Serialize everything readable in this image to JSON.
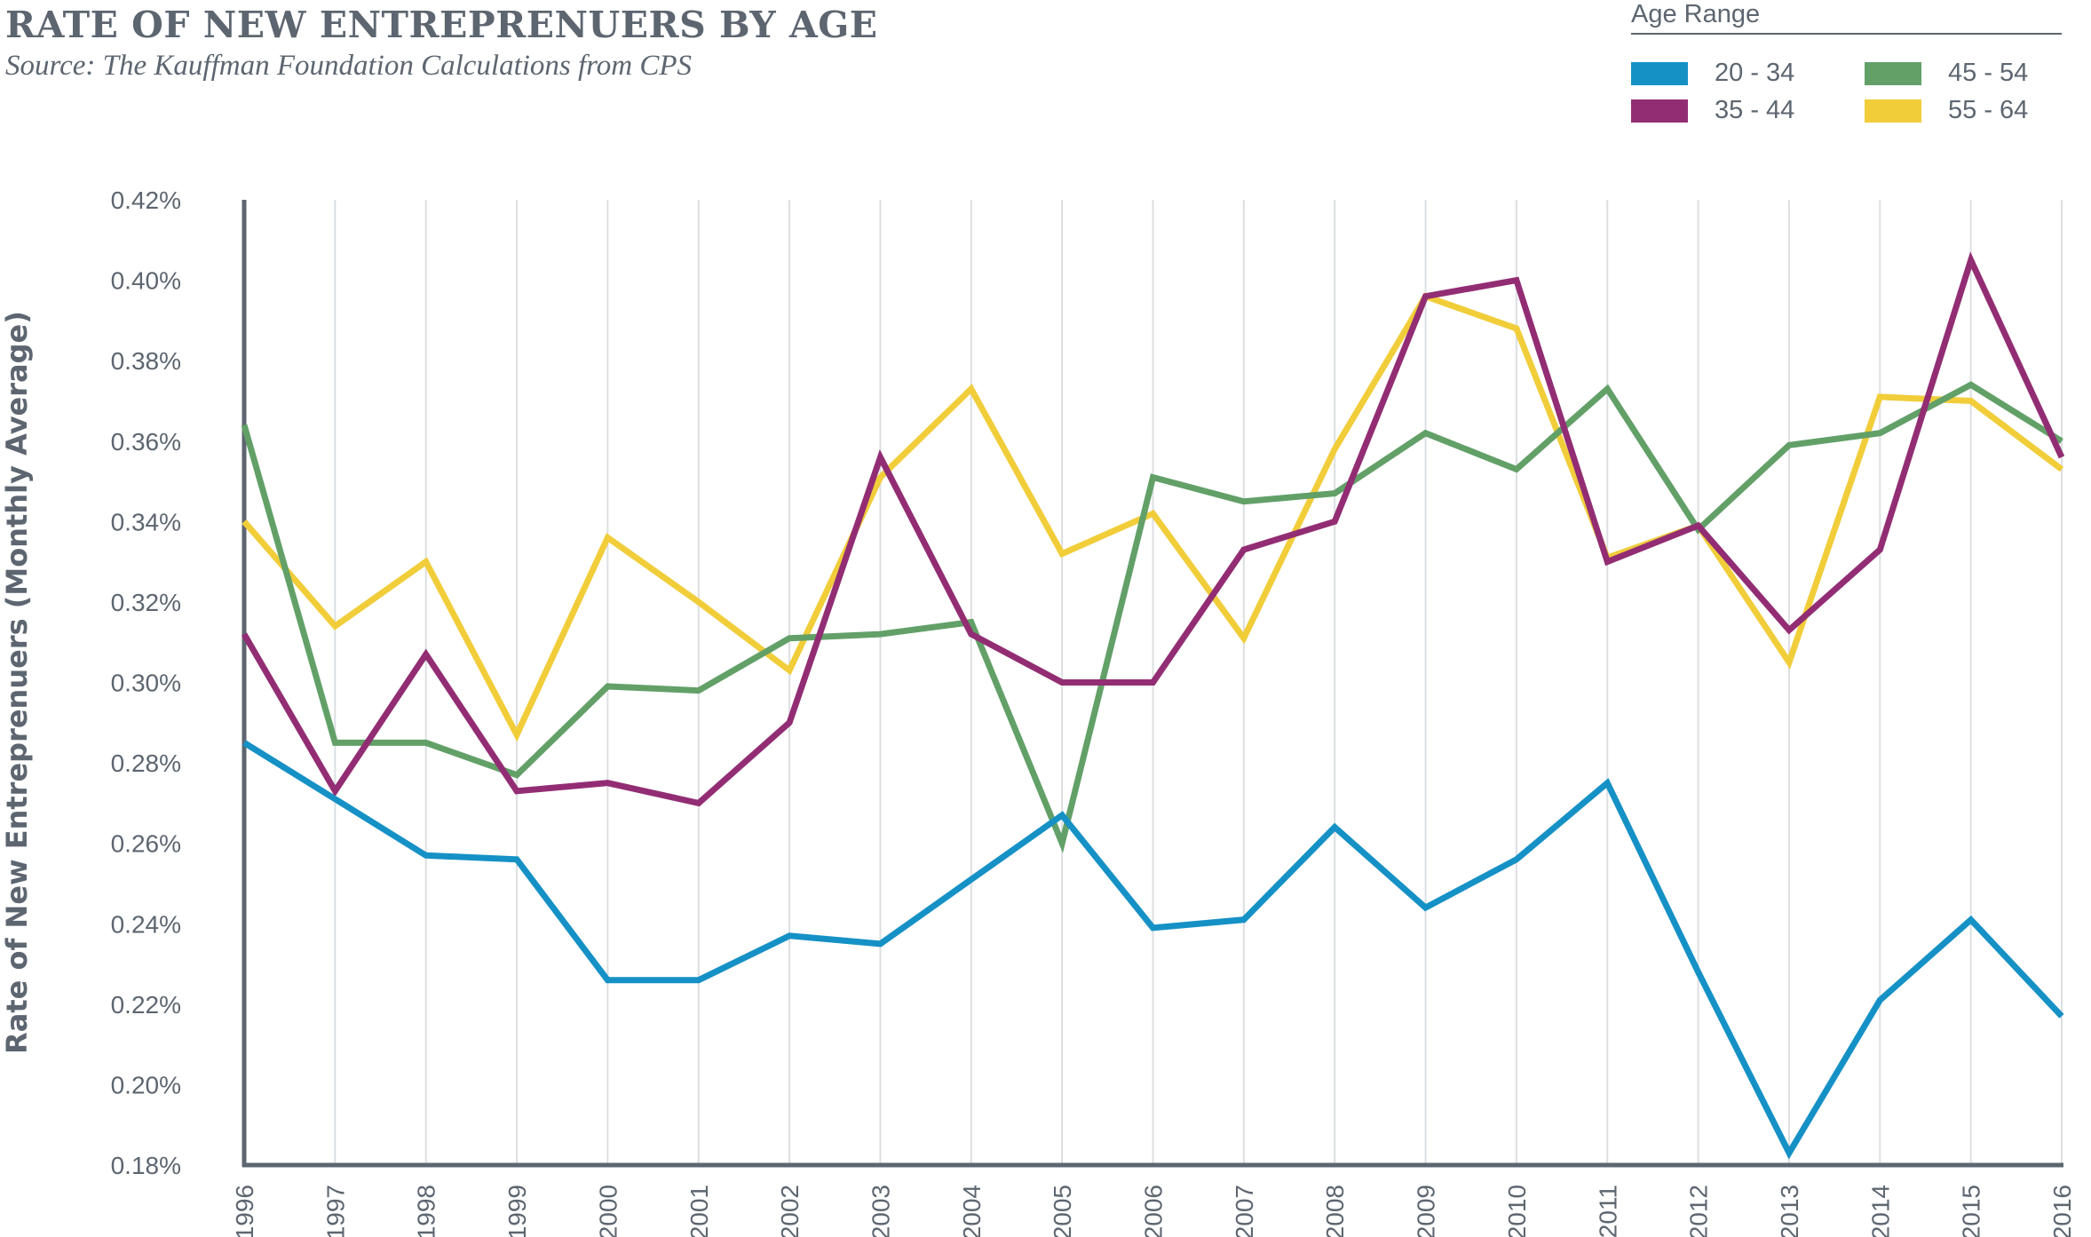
{
  "header": {
    "title": "RATE OF NEW ENTREPRENUERS BY AGE",
    "subtitle": "Source: The Kauffman Foundation Calculations from CPS"
  },
  "chart_data": {
    "type": "line",
    "title": "RATE OF NEW ENTREPRENUERS BY AGE",
    "subtitle": "Source: The Kauffman Foundation Calculations from CPS",
    "xlabel": "",
    "ylabel": "Rate of New Entreprenuers (Monthly Average)",
    "legend_title": "Age Range",
    "legend_position": "top-right",
    "grid": "vertical",
    "ylim": [
      0.18,
      0.42
    ],
    "yticks": [
      "0.18%",
      "0.20%",
      "0.22%",
      "0.24%",
      "0.26%",
      "0.28%",
      "0.30%",
      "0.32%",
      "0.34%",
      "0.36%",
      "0.38%",
      "0.40%",
      "0.42%"
    ],
    "x": [
      "1996",
      "1997",
      "1998",
      "1999",
      "2000",
      "2001",
      "2002",
      "2003",
      "2004",
      "2005",
      "2006",
      "2007",
      "2008",
      "2009",
      "2010",
      "2011",
      "2012",
      "2013",
      "2014",
      "2015",
      "2016"
    ],
    "series": [
      {
        "name": "20 - 34",
        "color": "#1591c6",
        "values": [
          0.285,
          0.271,
          0.257,
          0.256,
          0.226,
          0.226,
          0.237,
          0.235,
          0.251,
          0.267,
          0.239,
          0.241,
          0.264,
          0.244,
          0.256,
          0.275,
          0.228,
          0.183,
          0.221,
          0.241,
          0.217
        ]
      },
      {
        "name": "35 - 44",
        "color": "#922d74",
        "values": [
          0.312,
          0.273,
          0.307,
          0.273,
          0.275,
          0.27,
          0.29,
          0.356,
          0.312,
          0.3,
          0.3,
          0.333,
          0.34,
          0.396,
          0.4,
          0.33,
          0.339,
          0.313,
          0.333,
          0.405,
          0.356
        ]
      },
      {
        "name": "45 - 54",
        "color": "#62a068",
        "values": [
          0.364,
          0.285,
          0.285,
          0.277,
          0.299,
          0.298,
          0.311,
          0.312,
          0.315,
          0.26,
          0.351,
          0.345,
          0.347,
          0.362,
          0.353,
          0.373,
          0.338,
          0.359,
          0.362,
          0.374,
          0.36
        ]
      },
      {
        "name": "55 - 64",
        "color": "#f1cd3a",
        "values": [
          0.34,
          0.314,
          0.33,
          0.287,
          0.336,
          0.32,
          0.303,
          0.351,
          0.373,
          0.332,
          0.342,
          0.311,
          0.358,
          0.396,
          0.388,
          0.331,
          0.339,
          0.305,
          0.371,
          0.37,
          0.353
        ]
      }
    ]
  }
}
